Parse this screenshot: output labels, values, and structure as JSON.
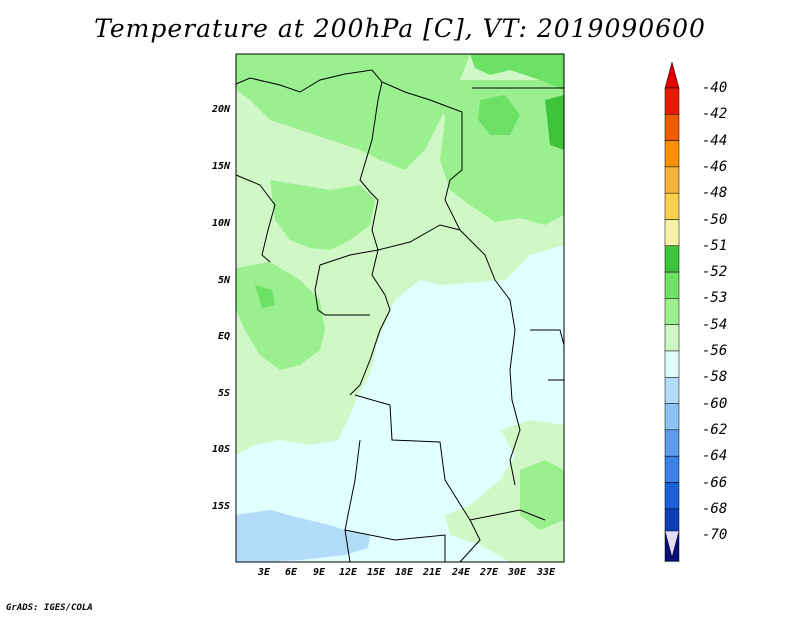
{
  "title": "Temperature at 200hPa [C], VT: 2019090600",
  "credit": "GrADS: IGES/COLA",
  "map": {
    "lat_labels": [
      "20N",
      "15N",
      "10N",
      "5N",
      "EQ",
      "5S",
      "10S",
      "15S"
    ],
    "lon_labels": [
      "3E",
      "6E",
      "9E",
      "12E",
      "15E",
      "18E",
      "21E",
      "24E",
      "27E",
      "30E",
      "33E"
    ]
  },
  "colorbar": {
    "labels": [
      "-40",
      "-42",
      "-44",
      "-46",
      "-48",
      "-50",
      "-51",
      "-52",
      "-53",
      "-54",
      "-56",
      "-58",
      "-60",
      "-62",
      "-64",
      "-66",
      "-68",
      "-70"
    ],
    "colors": [
      "#e81c00",
      "#f05a00",
      "#f88f00",
      "#f8b13a",
      "#f8d04c",
      "#f8f2a8",
      "#3ec43a",
      "#6de066",
      "#9af08f",
      "#cff8c6",
      "#e2ffff",
      "#b3dcfa",
      "#8cc2f4",
      "#5f9bec",
      "#3d80e6",
      "#1d5fd5",
      "#0d3eb7",
      "#060e7a"
    ],
    "top_arrow_color": "#e00000",
    "bottom_arrow_color": "#e6dcff"
  }
}
